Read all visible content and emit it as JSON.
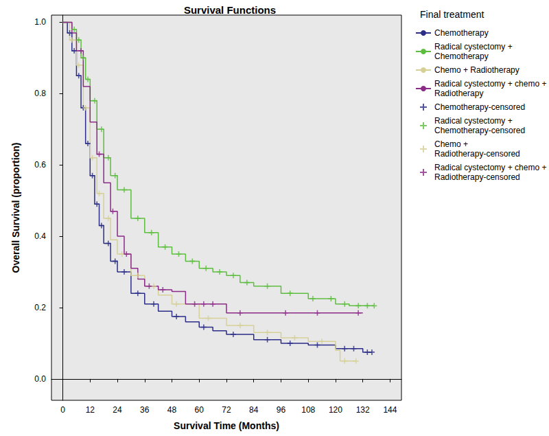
{
  "chart_data": {
    "type": "line",
    "title": "Survival Functions",
    "x_label": "Survival Time (Months)",
    "y_label": "Overall Survival (proportion)",
    "legend_title": "Final treatment",
    "legend": "right",
    "grid": false,
    "xlim": [
      -5,
      149
    ],
    "xticks": [
      0,
      12,
      24,
      36,
      48,
      60,
      72,
      84,
      96,
      108,
      120,
      132,
      144
    ],
    "ylim": [
      -0.06,
      1.02
    ],
    "yticks": [
      {
        "value": 0,
        "label": "0.0"
      },
      0.2,
      0.4,
      0.6,
      0.8,
      {
        "value": 1,
        "label": "1.0"
      }
    ],
    "series": [
      {
        "name": "Chemotherapy",
        "type": "line",
        "line_style": "solid",
        "marker": "none",
        "color": "#2b2d86",
        "x": [
          0,
          2,
          4,
          6,
          8,
          10,
          12,
          14,
          16,
          18,
          21,
          24,
          30,
          36,
          42,
          48,
          54,
          60,
          66,
          72,
          84,
          96,
          108,
          120,
          132,
          136
        ],
        "values": [
          1.0,
          0.97,
          0.92,
          0.85,
          0.76,
          0.66,
          0.57,
          0.49,
          0.43,
          0.38,
          0.33,
          0.3,
          0.24,
          0.21,
          0.19,
          0.175,
          0.16,
          0.145,
          0.135,
          0.125,
          0.11,
          0.1,
          0.095,
          0.085,
          0.075,
          0.075
        ]
      },
      {
        "name": "Radical cystectomy + Chemotherapy",
        "type": "line",
        "line_style": "solid",
        "marker": "none",
        "color": "#5dbd3f",
        "x": [
          0,
          4,
          6,
          8,
          10,
          12,
          15,
          18,
          21,
          24,
          30,
          36,
          42,
          48,
          54,
          60,
          66,
          72,
          78,
          84,
          96,
          108,
          120,
          126,
          137
        ],
        "values": [
          1.0,
          0.98,
          0.95,
          0.9,
          0.84,
          0.78,
          0.7,
          0.62,
          0.57,
          0.53,
          0.45,
          0.41,
          0.37,
          0.35,
          0.33,
          0.31,
          0.3,
          0.29,
          0.27,
          0.26,
          0.24,
          0.225,
          0.21,
          0.205,
          0.205
        ]
      },
      {
        "name": "Chemo + Radiotherapy",
        "type": "line",
        "line_style": "solid",
        "marker": "none",
        "color": "#d6d096",
        "x": [
          0,
          3,
          6,
          9,
          12,
          15,
          18,
          21,
          24,
          30,
          36,
          42,
          48,
          60,
          72,
          84,
          96,
          108,
          120,
          122,
          129
        ],
        "values": [
          1.0,
          0.95,
          0.88,
          0.76,
          0.62,
          0.52,
          0.45,
          0.39,
          0.35,
          0.29,
          0.26,
          0.235,
          0.21,
          0.17,
          0.15,
          0.13,
          0.115,
          0.105,
          0.08,
          0.05,
          0.05
        ]
      },
      {
        "name": "Radical cystectomy + chemo + Radiotherapy",
        "type": "line",
        "line_style": "solid",
        "marker": "none",
        "color": "#8b2a87",
        "x": [
          0,
          4,
          6,
          9,
          12,
          15,
          18,
          21,
          24,
          27,
          30,
          33,
          36,
          42,
          48,
          54,
          72,
          132
        ],
        "values": [
          1.0,
          0.97,
          0.92,
          0.82,
          0.72,
          0.63,
          0.55,
          0.47,
          0.4,
          0.35,
          0.31,
          0.28,
          0.26,
          0.25,
          0.245,
          0.21,
          0.185,
          0.185
        ]
      },
      {
        "name": "Chemotherapy-censored",
        "type": "scatter",
        "marker": "plus",
        "color": "#2b2d86",
        "x": [
          3,
          5,
          7,
          9,
          11,
          13,
          15,
          17,
          20,
          23,
          27,
          33,
          40,
          50,
          62,
          75,
          90,
          100,
          112,
          124,
          128,
          134,
          136
        ],
        "values": [
          0.97,
          0.92,
          0.85,
          0.76,
          0.66,
          0.57,
          0.49,
          0.43,
          0.38,
          0.33,
          0.3,
          0.24,
          0.21,
          0.175,
          0.145,
          0.125,
          0.11,
          0.1,
          0.095,
          0.085,
          0.085,
          0.075,
          0.075
        ]
      },
      {
        "name": "Radical cystectomy + Chemotherapy-censored",
        "type": "scatter",
        "marker": "plus",
        "color": "#5dbd3f",
        "x": [
          5,
          7,
          9,
          11,
          14,
          17,
          20,
          23,
          27,
          33,
          39,
          45,
          51,
          57,
          63,
          69,
          75,
          81,
          90,
          100,
          110,
          118,
          124,
          130,
          134,
          137
        ],
        "values": [
          0.98,
          0.95,
          0.9,
          0.84,
          0.78,
          0.7,
          0.62,
          0.57,
          0.53,
          0.45,
          0.41,
          0.37,
          0.35,
          0.33,
          0.31,
          0.3,
          0.29,
          0.27,
          0.26,
          0.24,
          0.225,
          0.225,
          0.21,
          0.205,
          0.205,
          0.205
        ]
      },
      {
        "name": "Chemo + Radiotherapy-censored",
        "type": "scatter",
        "marker": "plus",
        "color": "#d6d096",
        "x": [
          4,
          7,
          10,
          13,
          16,
          20,
          26,
          33,
          40,
          50,
          64,
          78,
          90,
          102,
          114,
          124,
          129
        ],
        "values": [
          0.95,
          0.88,
          0.76,
          0.62,
          0.52,
          0.45,
          0.35,
          0.29,
          0.26,
          0.21,
          0.17,
          0.15,
          0.13,
          0.115,
          0.105,
          0.05,
          0.05
        ]
      },
      {
        "name": "Radical cystectomy + chemo + Radiotherapy-censored",
        "type": "scatter",
        "marker": "plus",
        "color": "#8b2a87",
        "x": [
          8,
          16,
          22,
          28,
          38,
          44,
          58,
          62,
          66,
          78,
          98,
          112,
          130
        ],
        "values": [
          0.92,
          0.63,
          0.47,
          0.35,
          0.26,
          0.25,
          0.21,
          0.21,
          0.21,
          0.185,
          0.185,
          0.185,
          0.185
        ]
      }
    ]
  }
}
